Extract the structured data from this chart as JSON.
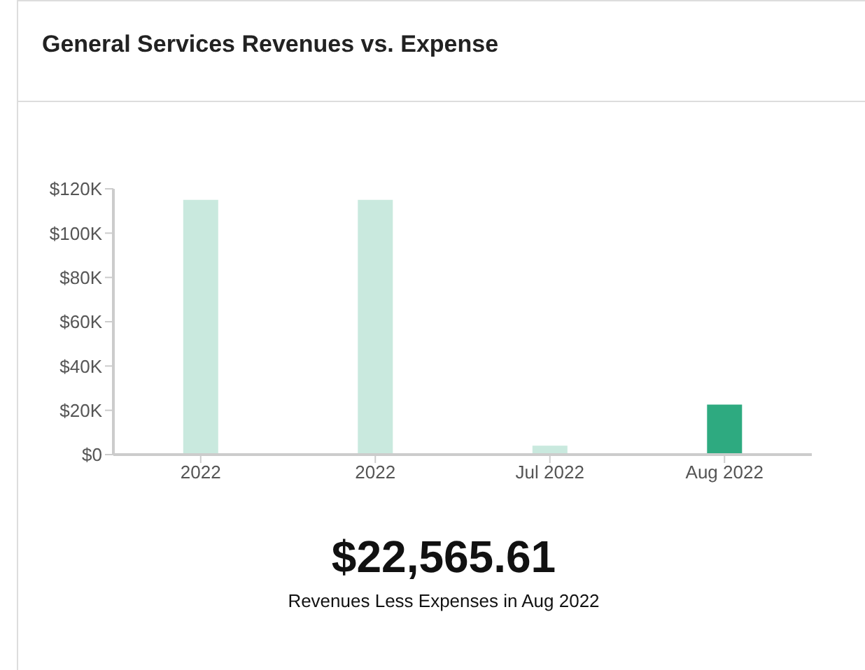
{
  "chart_data": {
    "type": "bar",
    "title": "General Services Revenues vs. Expense",
    "categories": [
      "2022",
      "2022",
      "Jul 2022",
      "Aug 2022"
    ],
    "values": [
      115000,
      115000,
      4000,
      22600
    ],
    "colors": [
      "#c9e9de",
      "#c9e9de",
      "#c9e9de",
      "#2eaa80"
    ],
    "ylim": [
      0,
      120000
    ],
    "yticks": [
      {
        "value": 0,
        "label": "$0"
      },
      {
        "value": 20000,
        "label": "$20K"
      },
      {
        "value": 40000,
        "label": "$40K"
      },
      {
        "value": 60000,
        "label": "$60K"
      },
      {
        "value": 80000,
        "label": "$80K"
      },
      {
        "value": 100000,
        "label": "$100K"
      },
      {
        "value": 120000,
        "label": "$120K"
      }
    ],
    "annotations": [
      "$22,565.61",
      "Revenues Less Expenses in Aug 2022"
    ],
    "grid": false,
    "legend": false
  }
}
